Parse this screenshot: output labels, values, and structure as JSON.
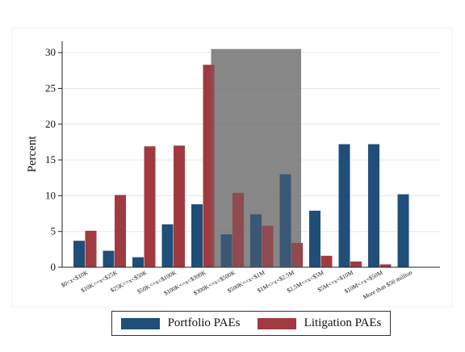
{
  "chart_data": {
    "type": "bar",
    "ylabel": "Percent",
    "xlabel": "",
    "ylim": [
      0,
      30
    ],
    "yticks": [
      0,
      5,
      10,
      15,
      20,
      25,
      30
    ],
    "grid": true,
    "legend_position": "bottom",
    "categories": [
      "$0<x<$10K",
      "$10K<=x<$25K",
      "$25K<=x<$50K",
      "$50K<=x<$100K",
      "$100K<=x<$300K",
      "$300K<=x<$500K",
      "$500K<=x<$1M",
      "$1M<=x<$2.5M",
      "$2.5M<=x<$5M",
      "$5M<=x<$10M",
      "$10M<=x<$50M",
      "More than $50 million"
    ],
    "series": [
      {
        "name": "Portfolio PAEs",
        "color": "#1f4e79",
        "values": [
          3.7,
          2.3,
          1.4,
          6.0,
          8.8,
          4.6,
          7.4,
          13.0,
          7.9,
          17.2,
          17.2,
          10.2
        ]
      },
      {
        "name": "Litigation PAEs",
        "color": "#a13a40",
        "values": [
          5.1,
          10.1,
          16.9,
          17.0,
          28.3,
          10.4,
          5.8,
          3.4,
          1.6,
          0.8,
          0.4,
          null
        ]
      }
    ],
    "highlight_band": {
      "from_category": 5,
      "to_category": 7,
      "color": "#6e6e6e"
    }
  }
}
